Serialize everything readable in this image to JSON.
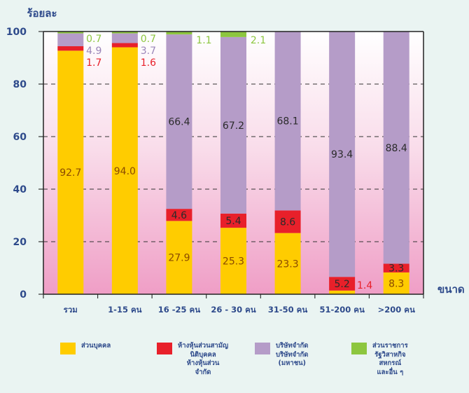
{
  "chart_data": {
    "type": "bar",
    "stacked": true,
    "ylabel": "ร้อยละ",
    "xlabel": "ขนาด",
    "ylim": [
      0,
      100
    ],
    "yticks": [
      "0",
      "20",
      "40",
      "60",
      "80",
      "100"
    ],
    "grid": "dashed horizontal",
    "categories": [
      "รวม",
      "1-15 คน",
      "16 -25 คน",
      "26 - 30 คน",
      "31-50 คน",
      "51-200 คน",
      ">200 คน"
    ],
    "series": [
      {
        "name": "ส่วนบุคคล",
        "color": "#ffcc00",
        "values": [
          92.7,
          94.0,
          27.9,
          25.3,
          23.3,
          1.4,
          8.3
        ],
        "labels": [
          "92.7",
          "94.0",
          "27.9",
          "25.3",
          "23.3",
          "1.4",
          "8.3"
        ]
      },
      {
        "name": "ห้างหุ้นส่วนสามัญ\nนิติบุคคล\nห้างหุ้นส่วน\nจำกัด",
        "color": "#e8202a",
        "values": [
          1.7,
          1.6,
          4.6,
          5.4,
          8.6,
          5.2,
          3.3
        ],
        "labels": [
          "1.7",
          "1.6",
          "4.6",
          "5.4",
          "8.6",
          "5.2",
          "3.3"
        ]
      },
      {
        "name": "บริษัทจำกัด\nบริษัทจำกัด\n(มหาชน)",
        "color": "#b59cc8",
        "values": [
          4.9,
          3.7,
          66.4,
          67.2,
          68.1,
          93.4,
          88.4
        ],
        "labels": [
          "4.9",
          "3.7",
          "66.4",
          "67.2",
          "68.1",
          "93.4",
          "88.4"
        ]
      },
      {
        "name": "ส่วนราชการ\nรัฐวิสาหกิจ\nสหกรณ์\nและอื่น ๆ",
        "color": "#8dc63f",
        "values": [
          0.7,
          0.7,
          1.1,
          2.1,
          0.0,
          0.0,
          0.0
        ],
        "labels": [
          "0.7",
          "0.7",
          "1.1",
          "2.1",
          "",
          "",
          ""
        ]
      }
    ]
  }
}
